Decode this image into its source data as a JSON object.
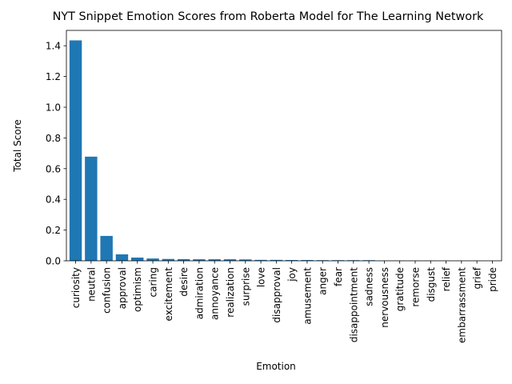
{
  "chart_data": {
    "type": "bar",
    "title": "NYT Snippet Emotion Scores from Roberta Model for The Learning Network",
    "xlabel": "Emotion",
    "ylabel": "Total Score",
    "ylim": [
      0,
      1.5
    ],
    "yticks": [
      "0.0",
      "0.2",
      "0.4",
      "0.6",
      "0.8",
      "1.0",
      "1.2",
      "1.4"
    ],
    "grid": false,
    "bar_color": "#1f77b4",
    "categories": [
      "curiosity",
      "neutral",
      "confusion",
      "approval",
      "optimism",
      "caring",
      "excitement",
      "desire",
      "admiration",
      "annoyance",
      "realization",
      "surprise",
      "love",
      "disapproval",
      "joy",
      "amusement",
      "anger",
      "fear",
      "disappointment",
      "sadness",
      "nervousness",
      "gratitude",
      "remorse",
      "disgust",
      "relief",
      "embarrassment",
      "grief",
      "pride"
    ],
    "values": [
      1.435,
      0.678,
      0.162,
      0.042,
      0.021,
      0.015,
      0.012,
      0.011,
      0.01,
      0.01,
      0.01,
      0.009,
      0.006,
      0.006,
      0.005,
      0.005,
      0.004,
      0.004,
      0.004,
      0.004,
      0.001,
      0.001,
      0.001,
      0.001,
      0.0005,
      0.0005,
      0.0004,
      0.0003
    ]
  }
}
